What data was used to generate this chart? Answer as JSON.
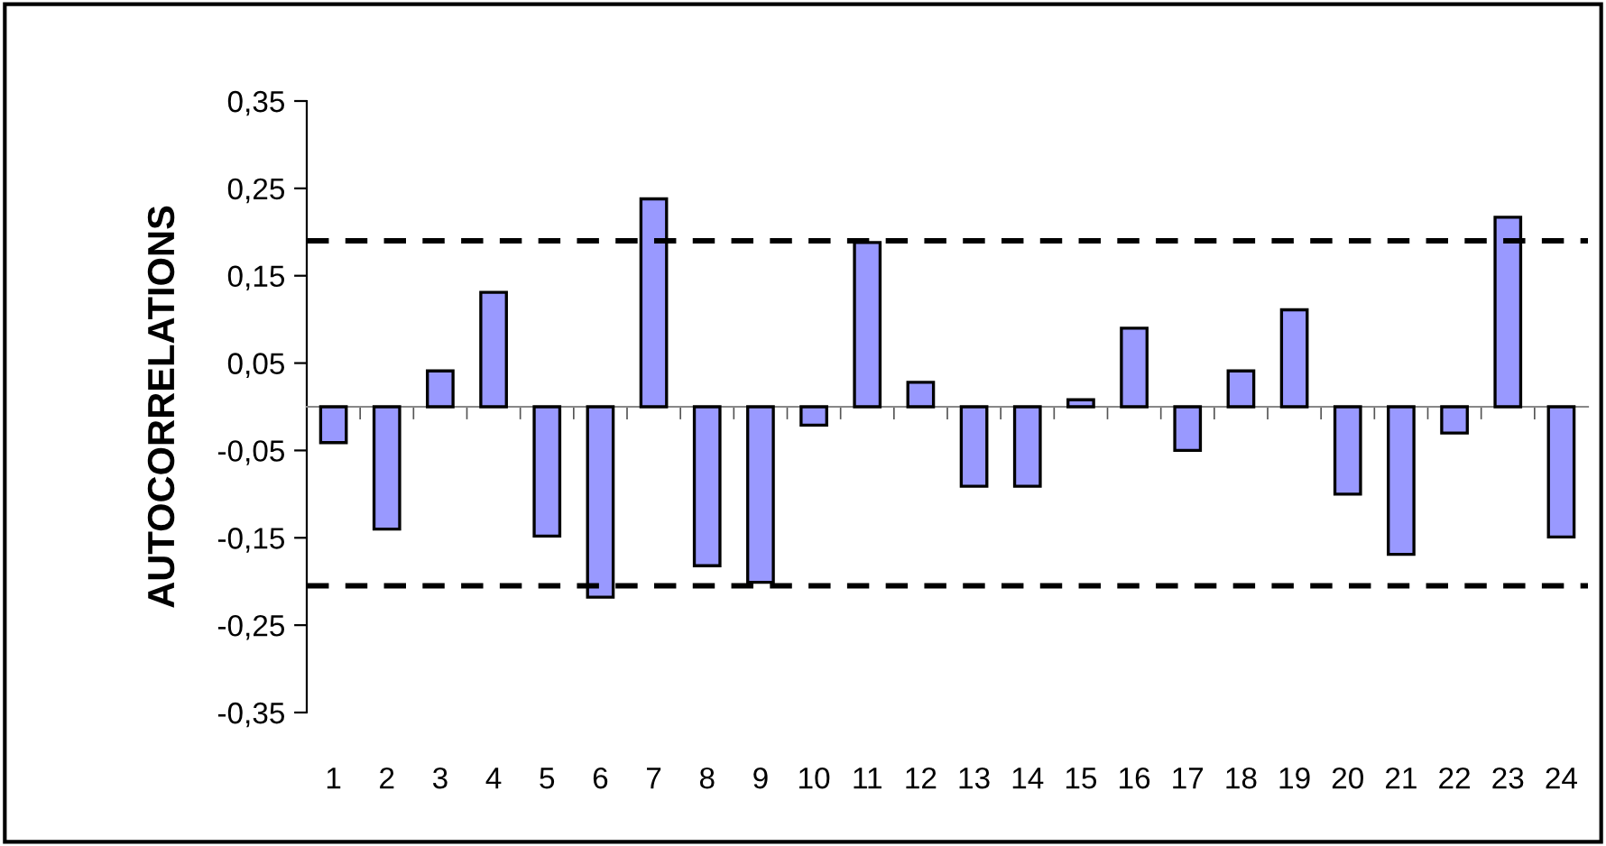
{
  "chart_data": {
    "type": "bar",
    "ylabel": "AUTOCORRELATIONS",
    "categories": [
      "1",
      "2",
      "3",
      "4",
      "5",
      "6",
      "7",
      "8",
      "9",
      "10",
      "11",
      "12",
      "13",
      "14",
      "15",
      "16",
      "17",
      "18",
      "19",
      "20",
      "21",
      "22",
      "23",
      "24"
    ],
    "values": [
      -0.041,
      -0.14,
      0.041,
      0.131,
      -0.148,
      -0.218,
      0.238,
      -0.182,
      -0.201,
      -0.021,
      0.188,
      0.028,
      -0.091,
      -0.091,
      0.008,
      0.09,
      -0.05,
      0.041,
      0.111,
      -0.1,
      -0.169,
      -0.03,
      0.217,
      -0.149
    ],
    "color": "#9999ff",
    "ylim": [
      -0.35,
      0.35
    ],
    "yticks": [
      {
        "value": 0.35,
        "label": "0,35"
      },
      {
        "value": 0.25,
        "label": "0,25"
      },
      {
        "value": 0.15,
        "label": "0,15"
      },
      {
        "value": 0.05,
        "label": "0,05"
      },
      {
        "value": -0.05,
        "label": "-0,05"
      },
      {
        "value": -0.15,
        "label": "-0,15"
      },
      {
        "value": -0.25,
        "label": "-0,25"
      },
      {
        "value": -0.35,
        "label": "-0,35"
      }
    ],
    "ref_lines": [
      {
        "axis": "y",
        "value": 0.19,
        "color": "#000000",
        "line_style": "dashed"
      },
      {
        "axis": "y",
        "value": -0.205,
        "color": "#000000",
        "line_style": "dashed"
      }
    ],
    "grid": false,
    "legend": false
  }
}
